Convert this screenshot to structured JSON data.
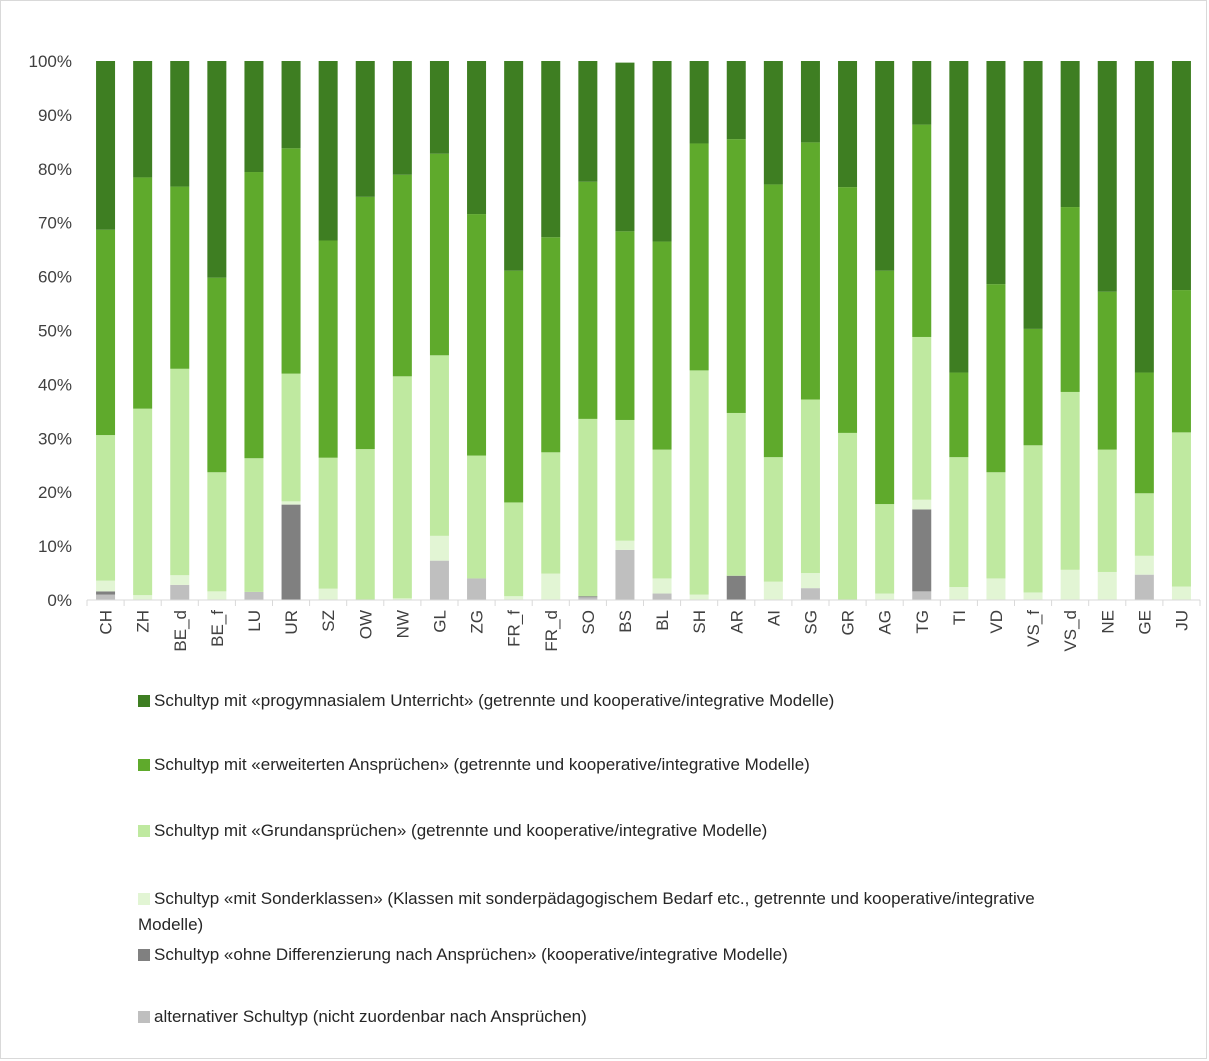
{
  "chart_data": {
    "type": "bar",
    "stacked": true,
    "percent": true,
    "title": "",
    "xlabel": "",
    "ylabel": "",
    "ylim": [
      0,
      100
    ],
    "y_ticks": [
      "0%",
      "10%",
      "20%",
      "30%",
      "40%",
      "50%",
      "60%",
      "70%",
      "80%",
      "90%",
      "100%"
    ],
    "grid": false,
    "legend_position": "bottom",
    "categories": [
      "CH",
      "ZH",
      "BE_d",
      "BE_f",
      "LU",
      "UR",
      "SZ",
      "OW",
      "NW",
      "GL",
      "ZG",
      "FR_f",
      "FR_d",
      "SO",
      "BS",
      "BL",
      "SH",
      "AR",
      "AI",
      "SG",
      "GR",
      "AG",
      "TG",
      "TI",
      "VD",
      "VS_f",
      "VS_d",
      "NE",
      "GE",
      "JU"
    ],
    "series": [
      {
        "name": "alternativer Schultyp (nicht zuordenbar nach Ansprüchen)",
        "color": "#bfbfbf",
        "values": [
          1.0,
          0,
          2.8,
          0,
          1.5,
          0,
          0,
          0,
          0,
          7.3,
          4.0,
          0,
          0,
          0.5,
          9.3,
          1.2,
          0,
          0,
          0,
          2.2,
          0,
          0,
          1.6,
          0,
          0,
          0,
          0,
          0,
          4.7,
          0
        ]
      },
      {
        "name": "Schultyp «ohne Differenzierung nach Ansprüchen» (kooperative/integrative Modelle)",
        "color": "#808080",
        "values": [
          0.6,
          0,
          0,
          0,
          0,
          17.7,
          0,
          0,
          0,
          0,
          0,
          0,
          0,
          0.2,
          0,
          0,
          0,
          4.5,
          0,
          0,
          0,
          0,
          15.2,
          0,
          0,
          0,
          0,
          0,
          0,
          0
        ]
      },
      {
        "name": "Schultyp «mit Sonderklassen» (Klassen mit sonderpädagogischem Bedarf etc., getrennte und kooperative/integrative Modelle)",
        "color": "#e2f5d4",
        "values": [
          2.0,
          0.9,
          1.8,
          1.6,
          0,
          0.6,
          2.1,
          0,
          0.3,
          4.6,
          0,
          0.7,
          4.9,
          0,
          1.7,
          2.8,
          1.0,
          0,
          3.4,
          2.8,
          0,
          1.2,
          1.8,
          2.4,
          4.0,
          1.4,
          5.6,
          5.2,
          3.5,
          2.5
        ]
      },
      {
        "name": "Schultyp mit «Grundansprüchen» (getrennte und kooperative/integrative Modelle)",
        "color": "#bfe9a0",
        "values": [
          27.0,
          34.6,
          38.3,
          22.1,
          24.8,
          23.7,
          24.3,
          28.0,
          41.2,
          33.5,
          22.8,
          17.4,
          22.5,
          32.9,
          22.4,
          23.9,
          41.6,
          30.2,
          23.1,
          32.2,
          31.0,
          16.6,
          30.2,
          24.1,
          19.7,
          27.3,
          33.0,
          22.7,
          11.6,
          28.6
        ]
      },
      {
        "name": "Schultyp mit «erweiterten Ansprüchen» (getrennte und kooperative/integrative Modelle)",
        "color": "#5faa2c",
        "values": [
          38.1,
          42.9,
          33.8,
          36.1,
          53.1,
          41.8,
          40.3,
          46.8,
          37.4,
          37.4,
          44.8,
          43.0,
          39.9,
          44.0,
          35.0,
          38.6,
          42.1,
          50.8,
          50.6,
          47.7,
          45.6,
          43.3,
          39.4,
          15.7,
          34.9,
          21.6,
          34.3,
          29.3,
          22.4,
          26.4
        ]
      },
      {
        "name": "Schultyp mit «progymnasialem Unterricht» (getrennte und kooperative/integrative Modelle)",
        "color": "#3e7e22",
        "values": [
          31.3,
          21.6,
          23.3,
          40.2,
          20.6,
          16.2,
          33.3,
          25.2,
          21.1,
          17.2,
          28.4,
          38.9,
          32.7,
          22.4,
          31.3,
          33.5,
          15.3,
          14.5,
          22.9,
          15.1,
          23.4,
          38.9,
          11.8,
          57.8,
          41.4,
          49.7,
          27.1,
          42.8,
          57.8,
          42.5
        ]
      }
    ]
  },
  "legend": [
    {
      "text": "Schultyp mit «progymnasialem Unterricht» (getrennte und kooperative/integrative Modelle)",
      "color": "#3e7e22"
    },
    {
      "text": "Schultyp mit «erweiterten Ansprüchen» (getrennte und kooperative/integrative Modelle)",
      "color": "#5faa2c"
    },
    {
      "text": "Schultyp mit «Grundansprüchen» (getrennte und kooperative/integrative Modelle)",
      "color": "#bfe9a0"
    },
    {
      "text": "Schultyp «mit Sonderklassen» (Klassen mit sonderpädagogischem Bedarf etc., getrennte und kooperative/integrative Modelle)",
      "color": "#e2f5d4"
    },
    {
      "text": "Schultyp «ohne Differenzierung nach Ansprüchen» (kooperative/integrative Modelle)",
      "color": "#808080"
    },
    {
      "text": "alternativer Schultyp (nicht zuordenbar nach Ansprüchen)",
      "color": "#bfbfbf"
    }
  ]
}
